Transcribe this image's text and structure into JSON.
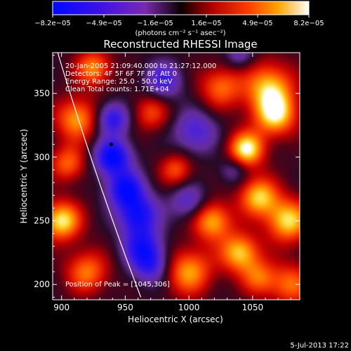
{
  "chart_data": {
    "type": "heatmap",
    "title": "Reconstructed RHESSI Image",
    "colorbar": {
      "ticks": [
        "−8.2e−05",
        "−4.9e−05",
        "−1.6e−05",
        "1.6e−05",
        "4.9e−05",
        "8.2e−05"
      ],
      "unit_label": "(photons cm⁻² s⁻¹ asec⁻²)",
      "range": [
        -8.2e-05,
        8.2e-05
      ],
      "colormap": "blue-purple-red-yellow-white"
    },
    "annotations": {
      "time_range": "20-Jan-2005 21:09:40.000 to 21:27:12.000",
      "detectors": "Detectors: 4F 5F 6F 7F 8F, Att 0",
      "energy": "Energy Range: 25.0 - 50.0 keV",
      "counts": "Clean    Total counts: 1.71E+04",
      "peak": "Position of Peak = [1045,306]"
    },
    "xlabel": "Heliocentric X (arcsec)",
    "ylabel": "Heliocentric Y (arcsec)",
    "x_ticks": [
      "900",
      "950",
      "1000",
      "1050"
    ],
    "y_ticks": [
      "200",
      "250",
      "300",
      "350"
    ],
    "xlim": [
      893,
      1087
    ],
    "ylim": [
      188,
      382
    ],
    "limb_line": "white solar limb arc",
    "peak": {
      "x": 1045,
      "y": 306
    },
    "marker": {
      "x": 939,
      "y": 310
    },
    "blobs": [
      {
        "x": 1045,
        "y": 306,
        "v": 1.0,
        "r": 10
      },
      {
        "x": 1068,
        "y": 333,
        "v": 0.85,
        "r": 12
      },
      {
        "x": 1063,
        "y": 355,
        "v": 0.8,
        "r": 14
      },
      {
        "x": 1055,
        "y": 269,
        "v": 0.85,
        "r": 11
      },
      {
        "x": 1078,
        "y": 250,
        "v": 0.9,
        "r": 12
      },
      {
        "x": 1018,
        "y": 250,
        "v": 0.8,
        "r": 11
      },
      {
        "x": 1040,
        "y": 225,
        "v": 0.85,
        "r": 11
      },
      {
        "x": 1000,
        "y": 210,
        "v": 0.75,
        "r": 13
      },
      {
        "x": 1025,
        "y": 355,
        "v": 0.6,
        "r": 12
      },
      {
        "x": 1080,
        "y": 200,
        "v": 0.6,
        "r": 12
      },
      {
        "x": 900,
        "y": 250,
        "v": 0.95,
        "r": 11
      },
      {
        "x": 912,
        "y": 330,
        "v": 0.75,
        "r": 12
      },
      {
        "x": 925,
        "y": 370,
        "v": 0.7,
        "r": 10
      },
      {
        "x": 905,
        "y": 295,
        "v": 0.6,
        "r": 10
      },
      {
        "x": 970,
        "y": 335,
        "v": 0.5,
        "r": 10
      },
      {
        "x": 990,
        "y": 290,
        "v": 0.55,
        "r": 9
      },
      {
        "x": 920,
        "y": 210,
        "v": 0.65,
        "r": 12
      },
      {
        "x": 1055,
        "y": 205,
        "v": 0.55,
        "r": 10
      },
      {
        "x": 940,
        "y": 300,
        "v": -1.0,
        "r": 10
      },
      {
        "x": 950,
        "y": 275,
        "v": -0.9,
        "r": 10
      },
      {
        "x": 960,
        "y": 255,
        "v": -0.85,
        "r": 11
      },
      {
        "x": 963,
        "y": 230,
        "v": -0.7,
        "r": 11
      },
      {
        "x": 940,
        "y": 330,
        "v": -0.75,
        "r": 9
      },
      {
        "x": 980,
        "y": 360,
        "v": -0.6,
        "r": 10
      },
      {
        "x": 1005,
        "y": 320,
        "v": -0.55,
        "r": 12
      },
      {
        "x": 970,
        "y": 215,
        "v": -0.6,
        "r": 10
      },
      {
        "x": 1000,
        "y": 265,
        "v": -0.5,
        "r": 10
      },
      {
        "x": 1035,
        "y": 290,
        "v": -0.35,
        "r": 8
      },
      {
        "x": 1040,
        "y": 380,
        "v": -0.4,
        "r": 8
      }
    ]
  },
  "footer": {
    "timestamp": "5-Jul-2013 17:22"
  }
}
